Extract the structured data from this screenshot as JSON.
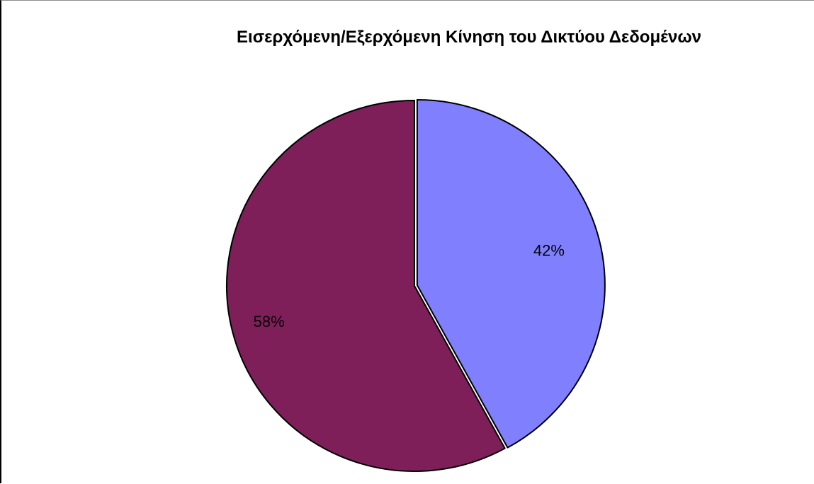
{
  "chart_data": {
    "type": "pie",
    "title": "Εισερχόμενη/Εξερχόμενη Κίνηση του Δικτύου Δεδομένων",
    "slices": [
      {
        "value": 42,
        "label": "42%",
        "color": "#8080FF"
      },
      {
        "value": 58,
        "label": "58%",
        "color": "#7F1F5A"
      }
    ],
    "legend": "none"
  }
}
